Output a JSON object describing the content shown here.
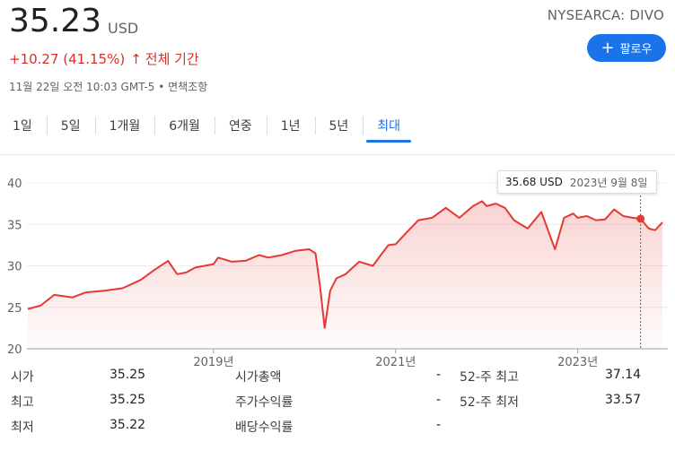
{
  "quote": {
    "price": "35.23",
    "currency": "USD",
    "exchange": "NYSEARCA: DIVO",
    "change": "+10.27 (41.15%)",
    "change_arrow": "↑",
    "period": "전체 기간",
    "timestamp": "11월 22일 오전 10:03 GMT-5 • 면책조항",
    "follow_label": "팔로우",
    "change_color": "#d93025",
    "accent_color": "#1a73e8"
  },
  "tabs": [
    {
      "label": "1일"
    },
    {
      "label": "5일"
    },
    {
      "label": "1개월"
    },
    {
      "label": "6개월"
    },
    {
      "label": "연중"
    },
    {
      "label": "1년"
    },
    {
      "label": "5년"
    },
    {
      "label": "최대",
      "active": true
    }
  ],
  "tooltip": {
    "value": "35.68 USD",
    "date": "2023년 9월 8일"
  },
  "stats": {
    "rows": [
      {
        "l1": "시가",
        "v1": "35.25",
        "l2": "시가총액",
        "v2": "-",
        "l3": "52-주 최고",
        "v3": "37.14"
      },
      {
        "l1": "최고",
        "v1": "35.25",
        "l2": "주가수익률",
        "v2": "-",
        "l3": "52-주 최저",
        "v3": "33.57"
      },
      {
        "l1": "최저",
        "v1": "35.22",
        "l2": "배당수익률",
        "v2": "-",
        "l3": "",
        "v3": ""
      }
    ]
  },
  "chart_data": {
    "type": "area",
    "line_color": "#e53935",
    "y_ticks": [
      "20",
      "25",
      "30",
      "35",
      "40"
    ],
    "ylim": [
      20,
      40
    ],
    "x_ticks": [
      {
        "label": "2019년",
        "x": 2019.0
      },
      {
        "label": "2021년",
        "x": 2021.0
      },
      {
        "label": "2023년",
        "x": 2023.0
      }
    ],
    "xlim": [
      2016.95,
      2023.95
    ],
    "grid": true,
    "marker": {
      "x": 2023.69,
      "y": 35.68
    },
    "x": [
      2016.96,
      2017.1,
      2017.25,
      2017.45,
      2017.6,
      2017.8,
      2018.0,
      2018.2,
      2018.35,
      2018.5,
      2018.6,
      2018.7,
      2018.8,
      2018.9,
      2019.0,
      2019.05,
      2019.2,
      2019.35,
      2019.5,
      2019.6,
      2019.75,
      2019.9,
      2020.05,
      2020.12,
      2020.17,
      2020.22,
      2020.28,
      2020.35,
      2020.45,
      2020.6,
      2020.75,
      2020.85,
      2020.92,
      2021.0,
      2021.1,
      2021.25,
      2021.4,
      2021.55,
      2021.7,
      2021.85,
      2021.95,
      2022.0,
      2022.1,
      2022.2,
      2022.3,
      2022.45,
      2022.6,
      2022.7,
      2022.75,
      2022.85,
      2022.95,
      2023.0,
      2023.1,
      2023.2,
      2023.3,
      2023.4,
      2023.5,
      2023.6,
      2023.69,
      2023.78,
      2023.85,
      2023.93
    ],
    "y": [
      24.8,
      25.2,
      26.5,
      26.2,
      26.8,
      27.0,
      27.3,
      28.3,
      29.5,
      30.6,
      29.0,
      29.2,
      29.8,
      30.0,
      30.2,
      31.0,
      30.5,
      30.6,
      31.3,
      31.0,
      31.3,
      31.8,
      32.0,
      31.5,
      27.5,
      22.5,
      27.0,
      28.5,
      29.0,
      30.5,
      30.0,
      31.5,
      32.5,
      32.6,
      33.8,
      35.5,
      35.8,
      37.0,
      35.8,
      37.2,
      37.8,
      37.2,
      37.5,
      37.0,
      35.5,
      34.5,
      36.5,
      33.5,
      32.0,
      35.8,
      36.3,
      35.8,
      36.0,
      35.5,
      35.6,
      36.8,
      36.0,
      35.8,
      35.68,
      34.5,
      34.3,
      35.23
    ]
  }
}
